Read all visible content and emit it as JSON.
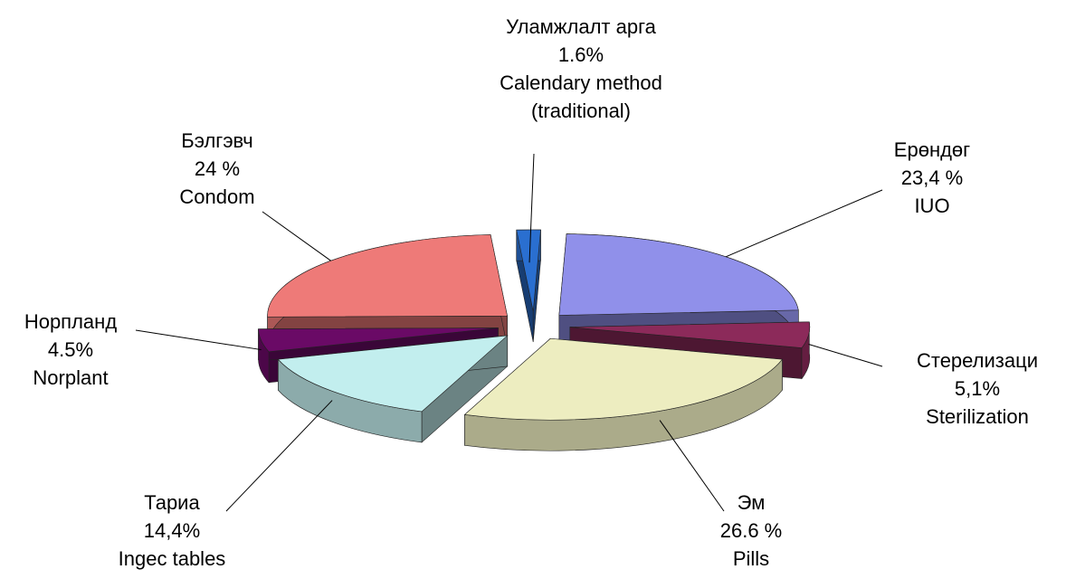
{
  "chart_data": {
    "type": "pie3d",
    "categories": [
      "Уламжлалт арга",
      "Ерөндөг",
      "Стерелизаци",
      "Эм",
      "Тариа",
      "Норпланд",
      "Бэлгэвч"
    ],
    "categories_en": [
      "Calendary method (traditional)",
      "IUO",
      "Sterilization",
      "Pills",
      "Ingec tables",
      "Norplant",
      "Condom"
    ],
    "values": [
      1.6,
      23.4,
      5.1,
      26.6,
      14.4,
      4.5,
      24
    ],
    "value_labels": [
      "1.6%",
      "23,4 %",
      "5,1%",
      "26.6 %",
      "14,4%",
      "4.5%",
      "24 %"
    ],
    "colors": [
      "#2a6fd0",
      "#9090ea",
      "#8c2a5a",
      "#ededc0",
      "#c2eeee",
      "#6a0a66",
      "#ee7a78"
    ]
  }
}
